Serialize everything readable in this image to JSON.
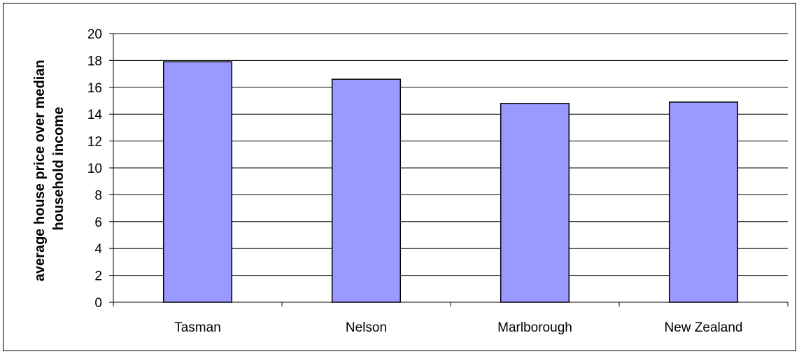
{
  "chart_data": {
    "type": "bar",
    "title": "",
    "xlabel": "",
    "ylabel_lines": [
      "average house price over median",
      "household income"
    ],
    "categories": [
      "Tasman",
      "Nelson",
      "Marlborough",
      "New Zealand"
    ],
    "series": [
      {
        "values": [
          17.9,
          16.6,
          14.8,
          14.9
        ]
      }
    ],
    "ylim": [
      0,
      20
    ],
    "yticks": [
      0,
      2,
      4,
      6,
      8,
      10,
      12,
      14,
      16,
      18,
      20
    ],
    "grid": true,
    "legend": "none",
    "colors": {
      "bar_fill": "#9999ff",
      "bar_stroke": "#000000",
      "grid": "#000000"
    }
  }
}
